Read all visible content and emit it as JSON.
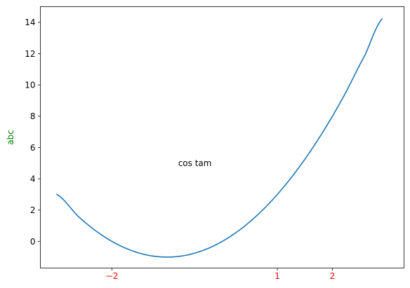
{
  "chart_data": {
    "type": "line",
    "title": "",
    "xlabel": "",
    "ylabel": "abc",
    "ylabel_color": "#008000",
    "xtick_color": "#ff0000",
    "xlim": [
      -3.3,
      3.3
    ],
    "ylim": [
      -1.7,
      15
    ],
    "xticks": [
      {
        "value": -2,
        "label": "−2"
      },
      {
        "value": 1,
        "label": "1"
      },
      {
        "value": 2,
        "label": "2"
      }
    ],
    "yticks": [
      {
        "value": 0,
        "label": "0"
      },
      {
        "value": 2,
        "label": "2"
      },
      {
        "value": 4,
        "label": "4"
      },
      {
        "value": 6,
        "label": "6"
      },
      {
        "value": 8,
        "label": "8"
      },
      {
        "value": 10,
        "label": "10"
      },
      {
        "value": 12,
        "label": "12"
      },
      {
        "value": 14,
        "label": "14"
      }
    ],
    "series": [
      {
        "color": "#1f77b4",
        "x": [
          -3.0,
          -2.6,
          -2.2,
          -1.8,
          -1.4,
          -1.0,
          -0.6,
          -0.2,
          0.2,
          0.6,
          1.0,
          1.4,
          1.8,
          2.2,
          2.6,
          2.9
        ],
        "y": [
          3.0,
          1.56,
          0.44,
          -0.36,
          -0.84,
          -1.0,
          -0.84,
          -0.36,
          0.44,
          1.56,
          3.0,
          4.76,
          6.84,
          9.24,
          11.96,
          14.21
        ]
      }
    ],
    "annotations": [
      {
        "text": "cos tam",
        "x": -0.8,
        "y": 5
      }
    ],
    "grid": false
  }
}
